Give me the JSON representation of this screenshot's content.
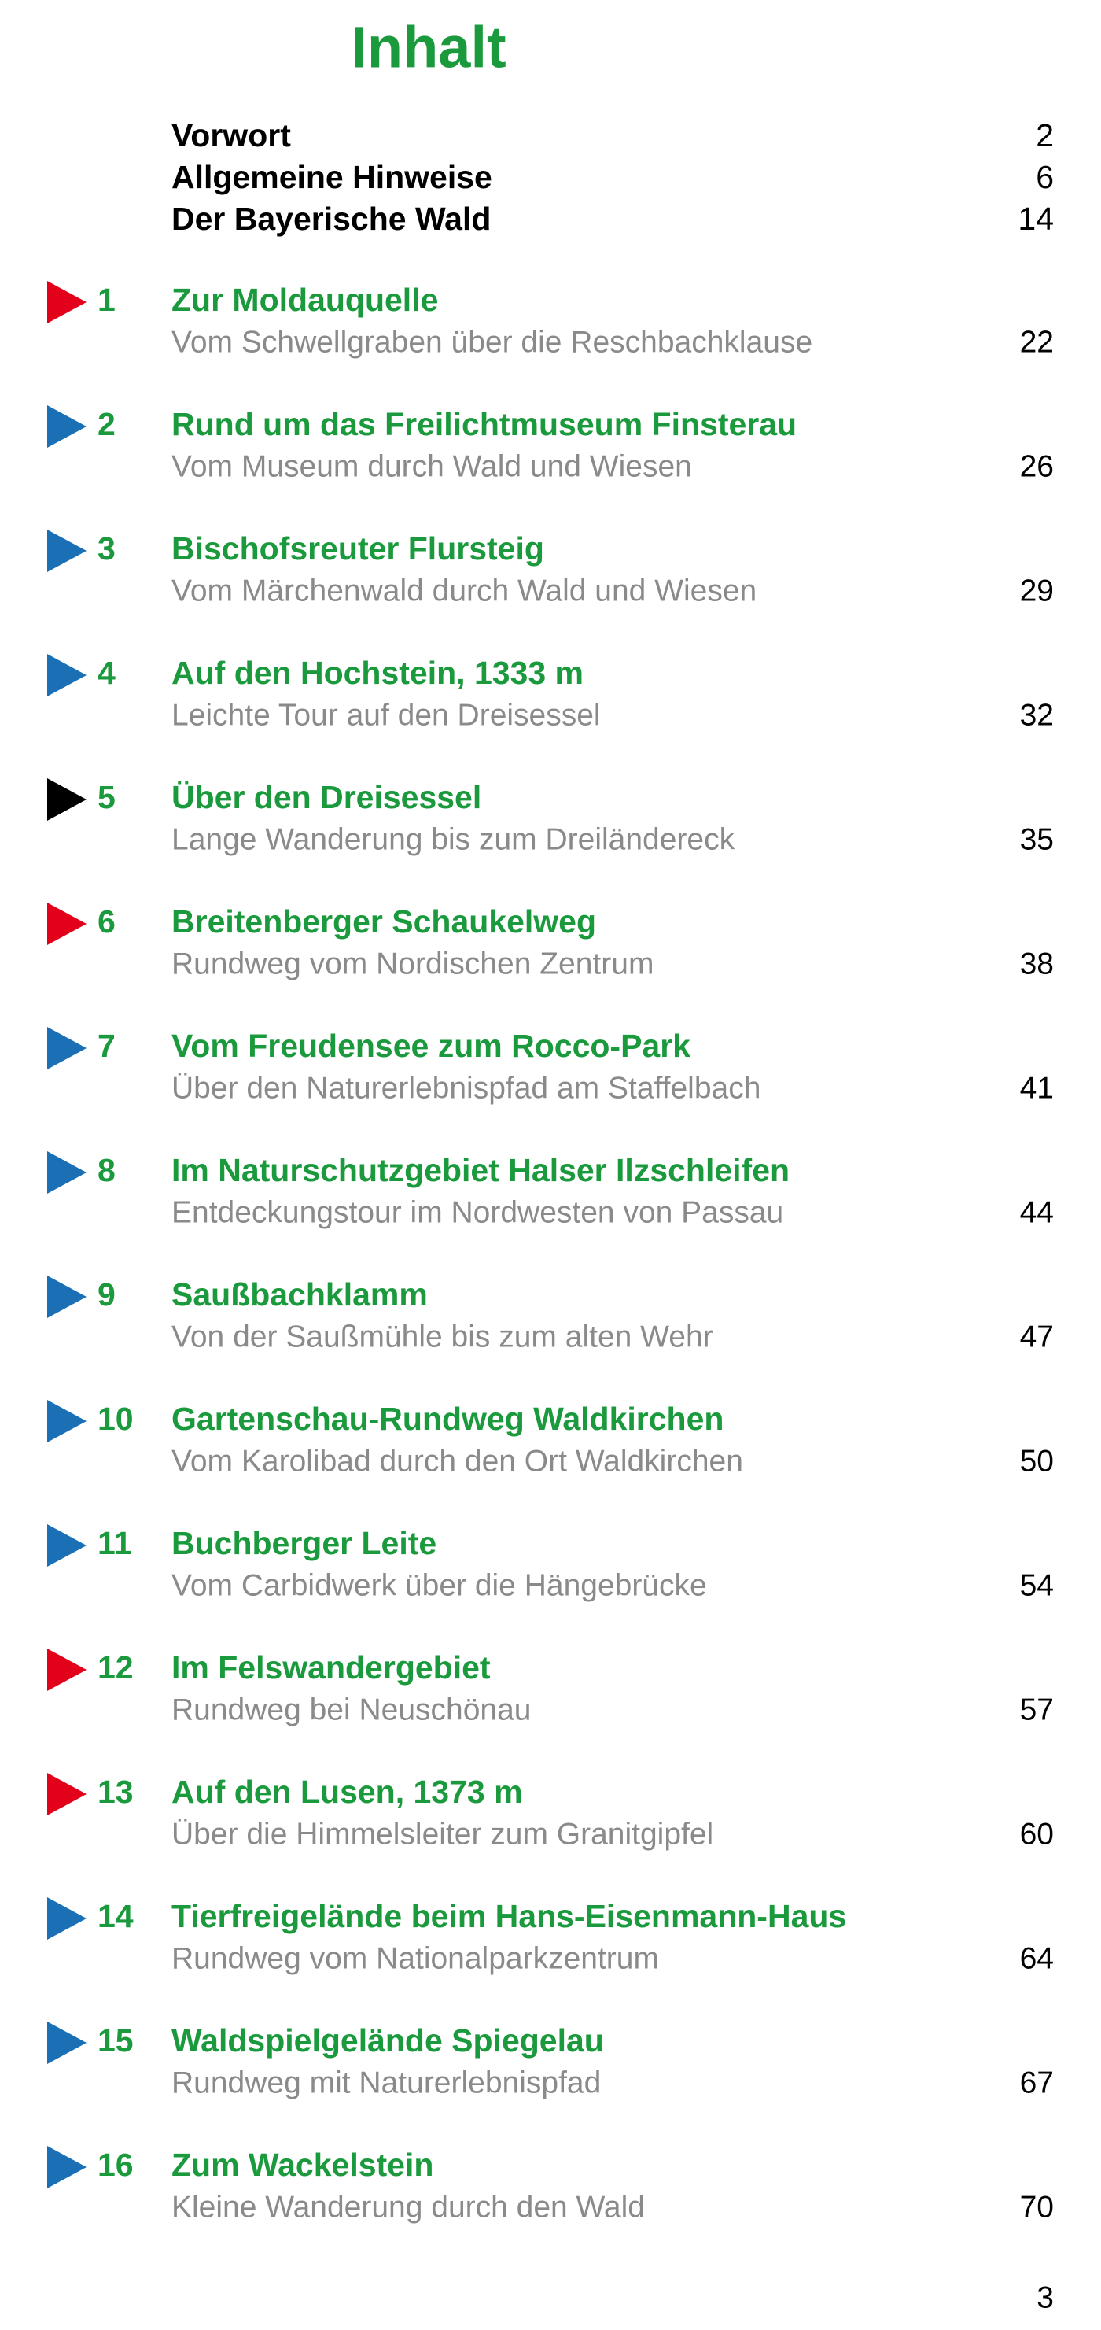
{
  "header": {
    "title": "Inhalt"
  },
  "front_matter": [
    {
      "title": "Vorwort",
      "page": "2"
    },
    {
      "title": "Allgemeine Hinweise",
      "page": "6"
    },
    {
      "title": "Der Bayerische Wald",
      "page": "14"
    }
  ],
  "tours": [
    {
      "number": "1",
      "title": "Zur Moldauquelle",
      "subtitle": "Vom Schwellgraben über die Reschbachklause",
      "page": "22",
      "marker": "#e2001a"
    },
    {
      "number": "2",
      "title": "Rund um das Freilichtmuseum Finsterau",
      "subtitle": "Vom Museum durch Wald und Wiesen",
      "page": "26",
      "marker": "#1a6fb5"
    },
    {
      "number": "3",
      "title": "Bischofsreuter Flursteig",
      "subtitle": "Vom Märchenwald durch Wald und Wiesen",
      "page": "29",
      "marker": "#1a6fb5"
    },
    {
      "number": "4",
      "title": "Auf den Hochstein, 1333 m",
      "subtitle": "Leichte Tour auf den Dreisessel",
      "page": "32",
      "marker": "#1a6fb5"
    },
    {
      "number": "5",
      "title": "Über den Dreisessel",
      "subtitle": "Lange Wanderung bis zum Dreiländereck",
      "page": "35",
      "marker": "#000000"
    },
    {
      "number": "6",
      "title": "Breitenberger Schaukelweg",
      "subtitle": "Rundweg vom Nordischen Zentrum",
      "page": "38",
      "marker": "#e2001a"
    },
    {
      "number": "7",
      "title": "Vom Freudensee zum Rocco-Park",
      "subtitle": "Über den Naturerlebnispfad am Staffelbach",
      "page": "41",
      "marker": "#1a6fb5"
    },
    {
      "number": "8",
      "title": "Im Naturschutzgebiet Halser Ilzschleifen",
      "subtitle": "Entdeckungstour im Nordwesten von Passau",
      "page": "44",
      "marker": "#1a6fb5"
    },
    {
      "number": "9",
      "title": "Saußbachklamm",
      "subtitle": "Von der Saußmühle bis zum alten Wehr",
      "page": "47",
      "marker": "#1a6fb5"
    },
    {
      "number": "10",
      "title": "Gartenschau-Rundweg Waldkirchen",
      "subtitle": "Vom Karolibad durch den Ort Waldkirchen",
      "page": "50",
      "marker": "#1a6fb5"
    },
    {
      "number": "11",
      "title": "Buchberger Leite",
      "subtitle": "Vom Carbidwerk über die Hängebrücke",
      "page": "54",
      "marker": "#1a6fb5"
    },
    {
      "number": "12",
      "title": "Im Felswandergebiet",
      "subtitle": "Rundweg bei Neuschönau",
      "page": "57",
      "marker": "#e2001a"
    },
    {
      "number": "13",
      "title": "Auf den Lusen, 1373 m",
      "subtitle": "Über die Himmelsleiter zum Granitgipfel",
      "page": "60",
      "marker": "#e2001a"
    },
    {
      "number": "14",
      "title": "Tierfreigelände beim Hans-Eisenmann-Haus",
      "subtitle": "Rundweg vom Nationalparkzentrum",
      "page": "64",
      "marker": "#1a6fb5"
    },
    {
      "number": "15",
      "title": "Waldspielgelände Spiegelau",
      "subtitle": "Rundweg mit Naturerlebnispfad",
      "page": "67",
      "marker": "#1a6fb5"
    },
    {
      "number": "16",
      "title": "Zum Wackelstein",
      "subtitle": "Kleine Wanderung durch den Wald",
      "page": "70",
      "marker": "#1a6fb5"
    }
  ],
  "footer": {
    "page_number": "3"
  }
}
